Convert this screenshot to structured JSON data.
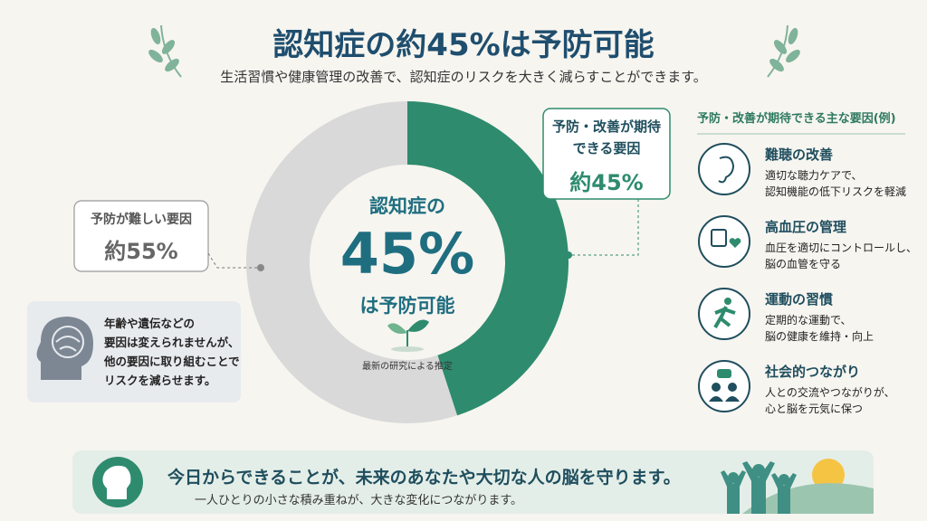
{
  "header": {
    "title": "認知症の約45%は予防可能",
    "subtitle": "生活習慣や健康管理の改善で、認知症のリスクを大きく減らすことができます。"
  },
  "chart_data": {
    "type": "donut",
    "categories": [
      "予防・改善が期待できる要因",
      "予防が難しい要因"
    ],
    "values": [
      45,
      55
    ],
    "value_labels": [
      "約45%",
      "約55%"
    ],
    "colors": [
      "#2e8b6e",
      "#d9d9d9"
    ],
    "center_lines": [
      "認知症の",
      "45%",
      "は予防可能"
    ],
    "note": "最新の研究による推定"
  },
  "info_box": {
    "lines": [
      "年齢や遺伝などの",
      "要因は変えられませんが、",
      "他の要因に取り組むことで",
      "リスクを減らせます。"
    ]
  },
  "factors": {
    "heading": "予防・改善が期待できる主な要因(例)",
    "items": [
      {
        "title": "難聴の改善",
        "desc": [
          "適切な聴力ケアで、",
          "認知機能の低下リスクを軽減"
        ]
      },
      {
        "title": "高血圧の管理",
        "desc": [
          "血圧を適切にコントロールし、",
          "脳の血管を守る"
        ]
      },
      {
        "title": "運動の習慣",
        "desc": [
          "定期的な運動で、",
          "脳の健康を維持・向上"
        ]
      },
      {
        "title": "社会的つながり",
        "desc": [
          "人との交流やつながりが、",
          "心と脳を元気に保つ"
        ]
      }
    ]
  },
  "banner": {
    "main": "今日からできることが、未来のあなたや大切な人の脳を守ります。",
    "sub": "一人ひとりの小さな積み重ねが、大きな変化につながります。"
  }
}
